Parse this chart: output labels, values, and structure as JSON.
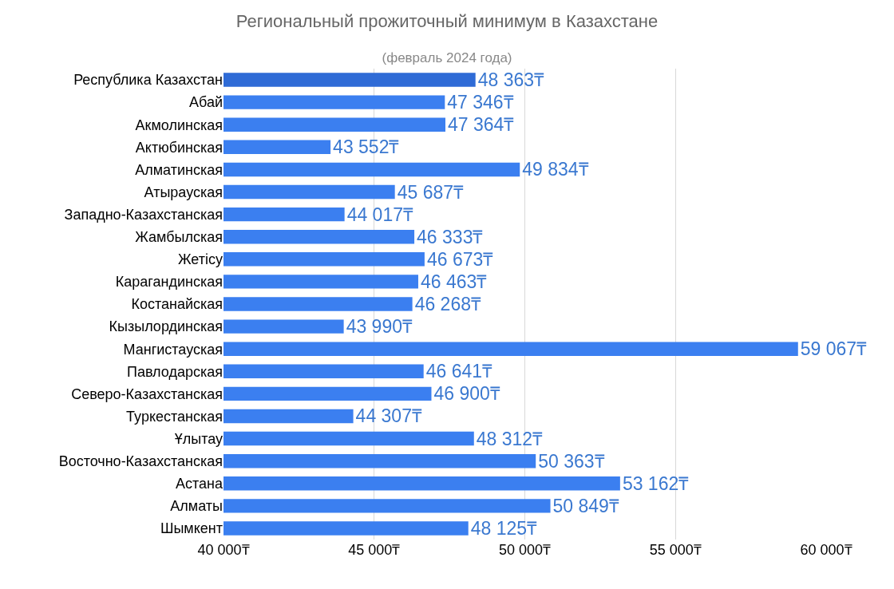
{
  "chart_data": {
    "type": "bar",
    "orientation": "horizontal",
    "title": "Региональный прожиточный минимум в Казахстане",
    "subtitle": "(февраль 2024 года)",
    "categories": [
      "Республика Казахстан",
      "Абай",
      "Акмолинская",
      "Актюбинская",
      "Алматинская",
      "Атырауская",
      "Западно-Казахстанская",
      "Жамбылская",
      "Жетісу",
      "Карагандинская",
      "Костанайская",
      "Кызылординская",
      "Мангистауская",
      "Павлодарская",
      "Северо-Казахстанская",
      "Туркестанская",
      "Ұлытау",
      "Восточно-Казахстанская",
      "Астана",
      "Алматы",
      "Шымкент"
    ],
    "values": [
      48363,
      47346,
      47364,
      43552,
      49834,
      45687,
      44017,
      46333,
      46673,
      46463,
      46268,
      43990,
      59067,
      46641,
      46900,
      44307,
      48312,
      50363,
      53162,
      50849,
      48125
    ],
    "value_labels": [
      "48 363₸",
      "47 346₸",
      "47 364₸",
      "43 552₸",
      "49 834₸",
      "45 687₸",
      "44 017₸",
      "46 333₸",
      "46 673₸",
      "46 463₸",
      "46 268₸",
      "43 990₸",
      "59 067₸",
      "46 641₸",
      "46 900₸",
      "44 307₸",
      "48 312₸",
      "50 363₸",
      "53 162₸",
      "50 849₸",
      "48 125₸"
    ],
    "colors": [
      "#2f6bd6",
      "#3b7ff0",
      "#3b7ff0",
      "#3b7ff0",
      "#3b7ff0",
      "#3b7ff0",
      "#3b7ff0",
      "#3b7ff0",
      "#3b7ff0",
      "#3b7ff0",
      "#3b7ff0",
      "#3b7ff0",
      "#3b7ff0",
      "#3b7ff0",
      "#3b7ff0",
      "#3b7ff0",
      "#3b7ff0",
      "#3b7ff0",
      "#3b7ff0",
      "#3b7ff0",
      "#3b7ff0"
    ],
    "xlim": [
      40000,
      60000
    ],
    "xticks": [
      {
        "value": 40000,
        "label": "40 000₸"
      },
      {
        "value": 45000,
        "label": "45 000₸"
      },
      {
        "value": 50000,
        "label": "50 000₸"
      },
      {
        "value": 55000,
        "label": "55 000₸"
      },
      {
        "value": 60000,
        "label": "60 000₸"
      }
    ],
    "grid": "x",
    "legend": false
  }
}
